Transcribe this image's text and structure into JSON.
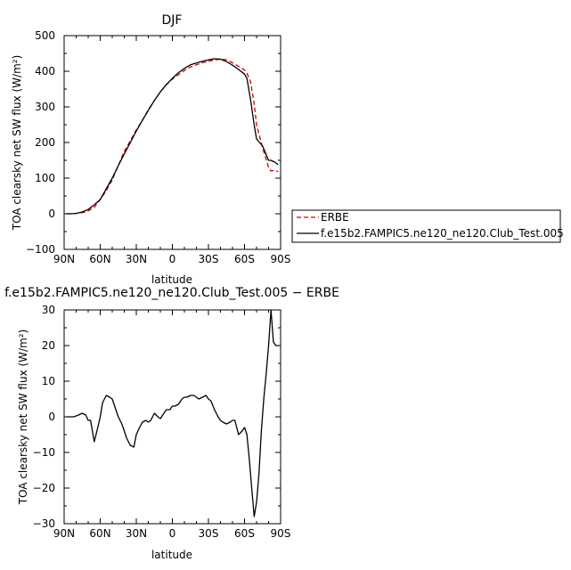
{
  "chart_data": [
    {
      "type": "line",
      "title": "DJF",
      "xlabel": "latitude",
      "ylabel": "TOA clearsky net SW flux (W/m²)",
      "xlim": [
        90,
        -90
      ],
      "ylim": [
        -100,
        500
      ],
      "x_ticks": [
        "90N",
        "60N",
        "30N",
        "0",
        "30S",
        "60S",
        "90S"
      ],
      "y_ticks": [
        "−100",
        "0",
        "100",
        "200",
        "300",
        "400",
        "500"
      ],
      "legend_position": "right",
      "series": [
        {
          "name": "ERBE",
          "color": "#cc0000",
          "dash": "dashed",
          "x": [
            88,
            85,
            80,
            75,
            70,
            65,
            60,
            55,
            50,
            45,
            40,
            35,
            30,
            25,
            20,
            15,
            10,
            5,
            0,
            -5,
            -10,
            -15,
            -20,
            -25,
            -30,
            -35,
            -40,
            -45,
            -50,
            -55,
            -60,
            -62,
            -65,
            -68,
            -70,
            -75,
            -80,
            -82,
            -85,
            -88
          ],
          "y": [
            0,
            0,
            1,
            3,
            8,
            18,
            40,
            65,
            95,
            135,
            175,
            205,
            235,
            262,
            292,
            318,
            342,
            362,
            378,
            390,
            402,
            412,
            418,
            424,
            428,
            432,
            434,
            432,
            424,
            414,
            404,
            395,
            370,
            310,
            250,
            185,
            130,
            120,
            122,
            118
          ]
        },
        {
          "name": "f.e15b2.FAMPIC5.ne120_ne120.Club_Test.005",
          "color": "#000000",
          "dash": "solid",
          "x": [
            88,
            85,
            80,
            75,
            70,
            65,
            60,
            55,
            50,
            45,
            40,
            35,
            30,
            25,
            20,
            15,
            10,
            5,
            0,
            -5,
            -10,
            -15,
            -20,
            -25,
            -30,
            -35,
            -40,
            -45,
            -50,
            -55,
            -60,
            -62,
            -65,
            -68,
            -70,
            -75,
            -80,
            -82,
            -85,
            -88
          ],
          "y": [
            0,
            0,
            1,
            5,
            12,
            25,
            40,
            70,
            100,
            135,
            168,
            200,
            232,
            262,
            290,
            318,
            342,
            363,
            380,
            396,
            408,
            418,
            423,
            428,
            432,
            435,
            434,
            427,
            417,
            405,
            392,
            380,
            320,
            250,
            210,
            190,
            150,
            150,
            145,
            138
          ]
        }
      ]
    },
    {
      "type": "line",
      "title": "f.e15b2.FAMPIC5.ne120_ne120.Club_Test.005 − ERBE",
      "xlabel": "latitude",
      "ylabel": "TOA clearsky net SW flux (W/m²)",
      "xlim": [
        90,
        -90
      ],
      "ylim": [
        -30,
        30
      ],
      "x_ticks": [
        "90N",
        "60N",
        "30N",
        "0",
        "30S",
        "60S",
        "90S"
      ],
      "y_ticks": [
        "−30",
        "−20",
        "−10",
        "0",
        "10",
        "20",
        "30"
      ],
      "series": [
        {
          "name": "",
          "color": "#000000",
          "dash": "solid",
          "x": [
            88,
            85,
            82,
            78,
            75,
            72,
            70,
            68,
            65,
            62,
            60,
            58,
            55,
            52,
            50,
            48,
            45,
            42,
            40,
            38,
            35,
            32,
            30,
            28,
            25,
            22,
            20,
            18,
            15,
            12,
            10,
            8,
            5,
            2,
            0,
            -2,
            -5,
            -8,
            -10,
            -12,
            -15,
            -18,
            -20,
            -22,
            -25,
            -28,
            -30,
            -32,
            -35,
            -38,
            -40,
            -42,
            -45,
            -48,
            -50,
            -52,
            -55,
            -58,
            -60,
            -62,
            -64,
            -66,
            -68,
            -70,
            -72,
            -74,
            -76,
            -78,
            -80,
            -82,
            -84,
            -86,
            -88
          ],
          "y": [
            0,
            0,
            0,
            0.5,
            1,
            0.5,
            -1,
            -1,
            -7,
            -3,
            0,
            4,
            6,
            5.5,
            5,
            3,
            0,
            -2,
            -4,
            -6,
            -8,
            -8.5,
            -5,
            -3.5,
            -1.5,
            -1,
            -1.5,
            -1,
            1,
            0,
            -0.5,
            0.5,
            2,
            2,
            3,
            3,
            3.5,
            5,
            5.5,
            5.5,
            6,
            6,
            5.5,
            5,
            5.5,
            6,
            5,
            4.5,
            2,
            0,
            -1,
            -1.5,
            -2,
            -1.5,
            -1,
            -1,
            -5,
            -4,
            -3,
            -5,
            -12,
            -20,
            -28,
            -24,
            -16,
            -4,
            5,
            12,
            20,
            30,
            21,
            20,
            20
          ]
        }
      ]
    }
  ]
}
